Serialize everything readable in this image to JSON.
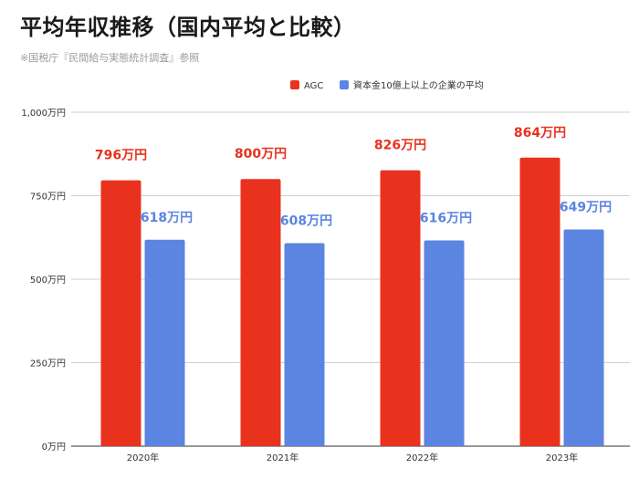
{
  "title": "平均年収推移（国内平均と比較）",
  "subtitle": "※国税庁『民間給与実態統計調査』参照",
  "chart_data": {
    "type": "bar",
    "categories": [
      "2020年",
      "2021年",
      "2022年",
      "2023年"
    ],
    "series": [
      {
        "name": "AGC",
        "color": "#e8321e",
        "values": [
          796,
          800,
          826,
          864
        ],
        "labels": [
          "796万円",
          "800万円",
          "826万円",
          "864万円"
        ]
      },
      {
        "name": "資本金10億上以上の企業の平均",
        "color": "#5b85e0",
        "values": [
          618,
          608,
          616,
          649
        ],
        "labels": [
          "618万円",
          "608万円",
          "616万円",
          "649万円"
        ]
      }
    ],
    "ylim": [
      0,
      1000
    ],
    "yticks": [
      0,
      250,
      500,
      750,
      1000
    ],
    "ytick_labels": [
      "0万円",
      "250万円",
      "500万円",
      "750万円",
      "1,000万円"
    ],
    "legend_position": "top-right",
    "grid": true
  }
}
